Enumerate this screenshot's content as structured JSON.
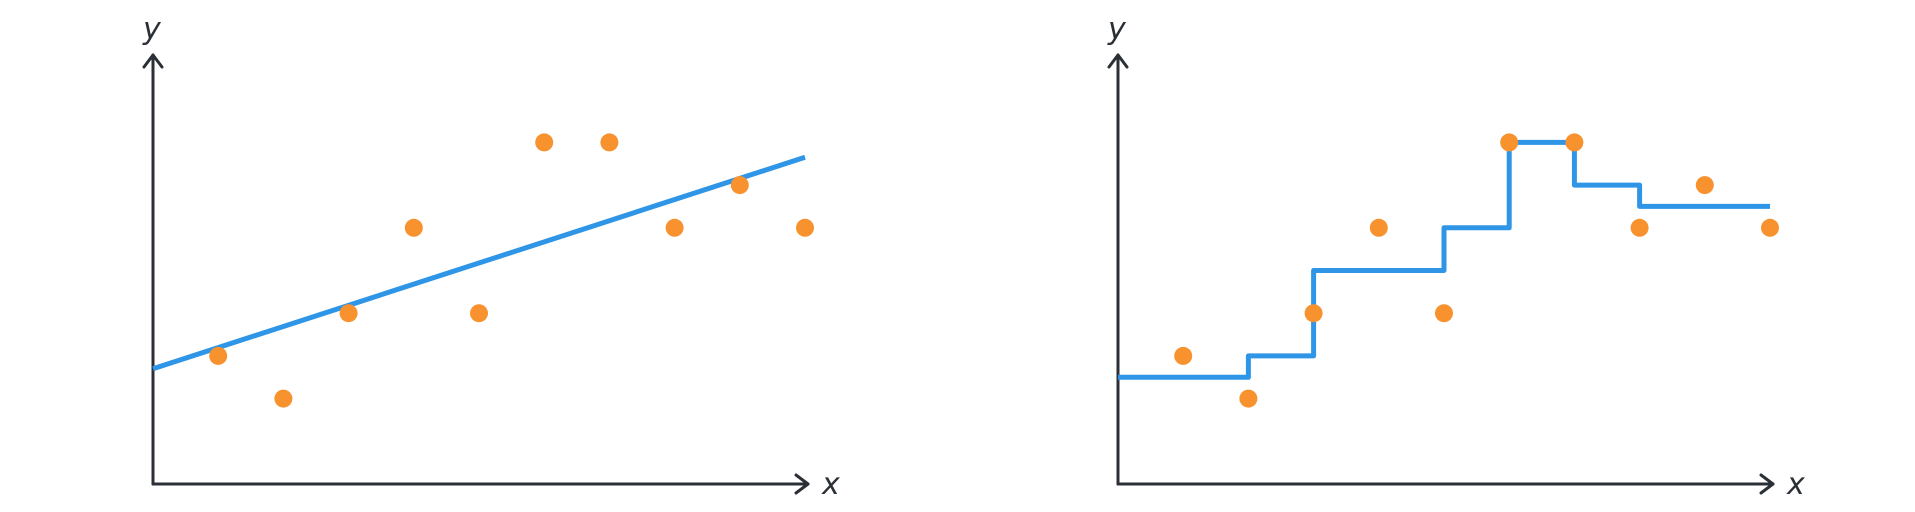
{
  "colors": {
    "points": "#f7922f",
    "fit": "#2f95e6",
    "axis": "#2b2f36"
  },
  "chart_data": [
    {
      "type": "scatter",
      "xlabel": "x",
      "ylabel": "y",
      "xlim": [
        0,
        10
      ],
      "ylim": [
        0,
        10
      ],
      "grid": false,
      "points": [
        {
          "x": 1,
          "y": 3
        },
        {
          "x": 2,
          "y": 2
        },
        {
          "x": 3,
          "y": 4
        },
        {
          "x": 4,
          "y": 6
        },
        {
          "x": 5,
          "y": 4
        },
        {
          "x": 6,
          "y": 8
        },
        {
          "x": 7,
          "y": 8
        },
        {
          "x": 8,
          "y": 6
        },
        {
          "x": 9,
          "y": 7
        },
        {
          "x": 10,
          "y": 6
        }
      ],
      "fit": {
        "kind": "linear",
        "x": [
          0,
          10
        ],
        "y": [
          2.7,
          7.65
        ]
      }
    },
    {
      "type": "scatter",
      "xlabel": "x",
      "ylabel": "y",
      "xlim": [
        0,
        10
      ],
      "ylim": [
        0,
        10
      ],
      "grid": false,
      "points": [
        {
          "x": 1,
          "y": 3
        },
        {
          "x": 2,
          "y": 2
        },
        {
          "x": 3,
          "y": 4
        },
        {
          "x": 4,
          "y": 6
        },
        {
          "x": 5,
          "y": 4
        },
        {
          "x": 6,
          "y": 8
        },
        {
          "x": 7,
          "y": 8
        },
        {
          "x": 8,
          "y": 6
        },
        {
          "x": 9,
          "y": 7
        },
        {
          "x": 10,
          "y": 6
        }
      ],
      "fit": {
        "kind": "step",
        "x": [
          0,
          2,
          2,
          3,
          3,
          5,
          5,
          6,
          6,
          7,
          7,
          8,
          8,
          10
        ],
        "y": [
          2.5,
          2.5,
          3,
          3,
          5,
          5,
          6,
          6,
          8,
          8,
          7,
          7,
          6.5,
          6.5
        ]
      }
    }
  ]
}
